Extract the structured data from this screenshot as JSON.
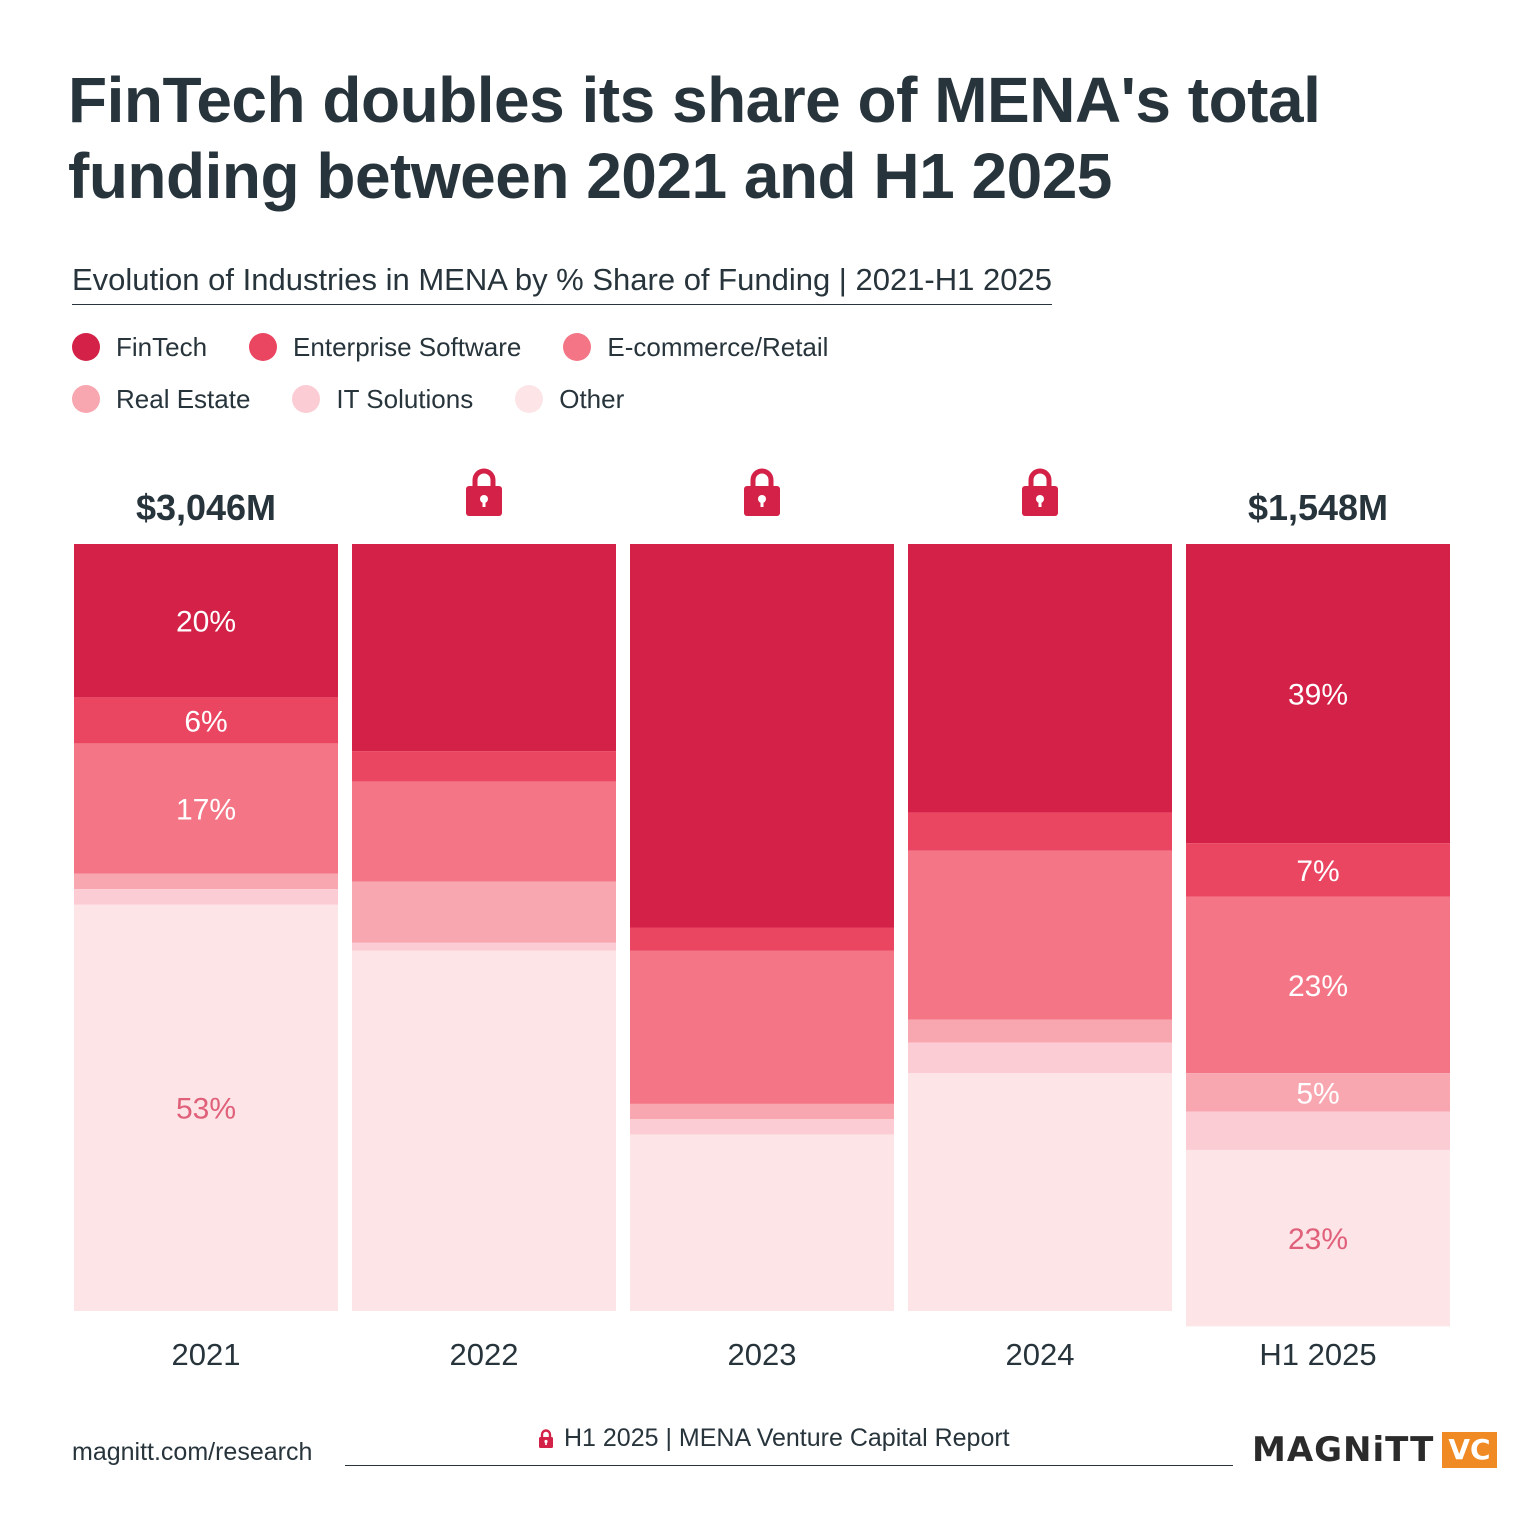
{
  "title": "FinTech doubles its share of MENA's total funding between 2021 and H1 2025",
  "subtitle": "Evolution of Industries in MENA by % Share of Funding | 2021-H1 2025",
  "footer": {
    "website": "magnitt.com/research",
    "report": "H1 2025 | MENA Venture Capital Report",
    "brand_name": "MAGNiTT",
    "brand_suffix": "VC"
  },
  "chart_data": {
    "type": "bar",
    "stacked": true,
    "normalized": true,
    "categories": [
      "2021",
      "2022",
      "2023",
      "2024",
      "H1 2025"
    ],
    "totals": [
      "$3,046M",
      null,
      null,
      null,
      "$1,548M"
    ],
    "locked": [
      false,
      true,
      true,
      true,
      false
    ],
    "series": [
      {
        "name": "FinTech",
        "color": "#d32147",
        "values": [
          20,
          27,
          50,
          35,
          39
        ],
        "labels": [
          "20%",
          null,
          null,
          null,
          "39%"
        ]
      },
      {
        "name": "Enterprise Software",
        "color": "#ea4561",
        "values": [
          6,
          4,
          3,
          5,
          7
        ],
        "labels": [
          "6%",
          null,
          null,
          null,
          "7%"
        ]
      },
      {
        "name": "E-commerce/Retail",
        "color": "#f47686",
        "values": [
          17,
          13,
          20,
          22,
          23
        ],
        "labels": [
          "17%",
          null,
          null,
          null,
          "23%"
        ]
      },
      {
        "name": "Real Estate",
        "color": "#f8a6b0",
        "values": [
          2,
          8,
          2,
          3,
          5
        ],
        "labels": [
          null,
          null,
          null,
          null,
          "5%"
        ]
      },
      {
        "name": "IT Solutions",
        "color": "#fbccd3",
        "values": [
          2,
          1,
          2,
          4,
          5
        ],
        "labels": [
          null,
          null,
          null,
          null,
          null
        ]
      },
      {
        "name": "Other",
        "color": "#fde4e7",
        "values": [
          53,
          47,
          23,
          31,
          23
        ],
        "labels": [
          "53%",
          null,
          null,
          null,
          "23%"
        ]
      }
    ],
    "ylim": [
      0,
      100
    ],
    "legend_position": "top-left"
  }
}
